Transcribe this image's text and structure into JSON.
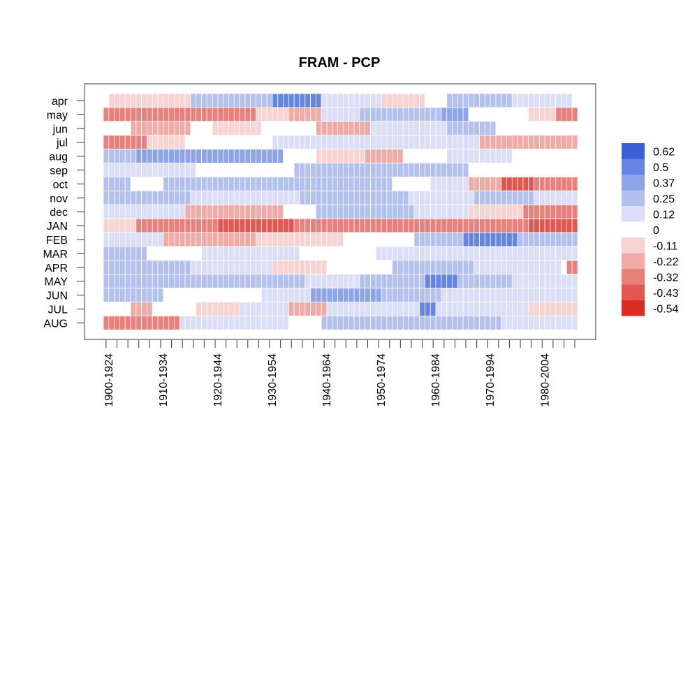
{
  "chart_data": {
    "type": "heatmap",
    "title": "FRAM - PCP",
    "rows": [
      "apr",
      "may",
      "jun",
      "jul",
      "aug",
      "sep",
      "oct",
      "nov",
      "dec",
      "JAN",
      "FEB",
      "MAR",
      "APR",
      "MAY",
      "JUN",
      "JUL",
      "AUG"
    ],
    "first_window_start": 1900,
    "last_window_start": 1986,
    "window_length_years": 25,
    "x_tick_labels": [
      "1900-1924",
      "1910-1934",
      "1920-1944",
      "1930-1954",
      "1940-1964",
      "1950-1974",
      "1960-1984",
      "1970-1994",
      "1980-2004"
    ],
    "legend": {
      "labels": [
        "0.62",
        "0.5",
        "0.37",
        "0.25",
        "0.12",
        "0",
        "-0.11",
        "-0.22",
        "-0.32",
        "-0.43",
        "-0.54"
      ],
      "colors": [
        "#3a5fd9",
        "#6585e2",
        "#8ea4e8",
        "#b4c1ef",
        "#dadff7",
        "#ffffff",
        "#f7d3d1",
        "#f0aba7",
        "#e9807b",
        "#e2574f",
        "#db2c22"
      ],
      "position": "right"
    },
    "segments": [
      [
        [
          1900,
          1900,
          0
        ],
        [
          1901,
          1904,
          -0.1
        ],
        [
          1905,
          1915,
          -0.1
        ],
        [
          1916,
          1927,
          0.25
        ],
        [
          1928,
          1930,
          0.3
        ],
        [
          1931,
          1939,
          0.45
        ],
        [
          1940,
          1950,
          0.08
        ],
        [
          1951,
          1958,
          -0.06
        ],
        [
          1959,
          1962,
          0.05
        ],
        [
          1963,
          1974,
          0.3
        ],
        [
          1975,
          1985,
          0.12
        ],
        [
          1986,
          1986,
          0
        ]
      ],
      [
        [
          1900,
          1913,
          -0.35
        ],
        [
          1914,
          1927,
          -0.28
        ],
        [
          1928,
          1933,
          -0.1
        ],
        [
          1934,
          1939,
          -0.2
        ],
        [
          1940,
          1946,
          0.08
        ],
        [
          1947,
          1961,
          0.28
        ],
        [
          1962,
          1966,
          0.35
        ],
        [
          1967,
          1977,
          0.02
        ],
        [
          1978,
          1982,
          -0.12
        ],
        [
          1983,
          1986,
          -0.28
        ]
      ],
      [
        [
          1900,
          1904,
          0
        ],
        [
          1905,
          1915,
          -0.2
        ],
        [
          1916,
          1919,
          0
        ],
        [
          1920,
          1928,
          -0.12
        ],
        [
          1929,
          1938,
          0.05
        ],
        [
          1939,
          1948,
          -0.2
        ],
        [
          1949,
          1962,
          0.1
        ],
        [
          1963,
          1971,
          0.3
        ],
        [
          1972,
          1982,
          0.05
        ],
        [
          1983,
          1986,
          0
        ]
      ],
      [
        [
          1900,
          1907,
          -0.28
        ],
        [
          1908,
          1914,
          -0.15
        ],
        [
          1915,
          1930,
          0.05
        ],
        [
          1931,
          1946,
          0.08
        ],
        [
          1947,
          1960,
          0.12
        ],
        [
          1961,
          1968,
          0.08
        ],
        [
          1969,
          1986,
          -0.22
        ]
      ],
      [
        [
          1900,
          1905,
          0.2
        ],
        [
          1906,
          1915,
          0.4
        ],
        [
          1916,
          1932,
          0.35
        ],
        [
          1933,
          1938,
          0
        ],
        [
          1939,
          1947,
          -0.15
        ],
        [
          1948,
          1954,
          -0.18
        ],
        [
          1955,
          1962,
          0.05
        ],
        [
          1963,
          1974,
          0.12
        ],
        [
          1975,
          1986,
          0.05
        ]
      ],
      [
        [
          1900,
          1916,
          0.15
        ],
        [
          1917,
          1925,
          0.05
        ],
        [
          1926,
          1934,
          0
        ],
        [
          1935,
          1955,
          0.25
        ],
        [
          1956,
          1966,
          0.25
        ],
        [
          1967,
          1986,
          0.05
        ]
      ],
      [
        [
          1900,
          1904,
          0.2
        ],
        [
          1905,
          1910,
          0.05
        ],
        [
          1911,
          1926,
          0.25
        ],
        [
          1927,
          1952,
          0.25
        ],
        [
          1953,
          1959,
          0.05
        ],
        [
          1960,
          1966,
          0.12
        ],
        [
          1967,
          1972,
          -0.25
        ],
        [
          1973,
          1978,
          -0.45
        ],
        [
          1979,
          1986,
          -0.3
        ]
      ],
      [
        [
          1900,
          1915,
          0.25
        ],
        [
          1916,
          1935,
          0.15
        ],
        [
          1936,
          1955,
          0.2
        ],
        [
          1956,
          1967,
          0.15
        ],
        [
          1968,
          1978,
          0.2
        ],
        [
          1979,
          1986,
          0.12
        ]
      ],
      [
        [
          1900,
          1906,
          0.12
        ],
        [
          1907,
          1914,
          0.12
        ],
        [
          1915,
          1932,
          -0.2
        ],
        [
          1933,
          1938,
          0.05
        ],
        [
          1939,
          1956,
          0.28
        ],
        [
          1957,
          1966,
          0.08
        ],
        [
          1967,
          1976,
          -0.15
        ],
        [
          1977,
          1986,
          -0.35
        ]
      ],
      [
        [
          1900,
          1905,
          -0.12
        ],
        [
          1906,
          1920,
          -0.35
        ],
        [
          1921,
          1934,
          -0.38
        ],
        [
          1935,
          1950,
          -0.28
        ],
        [
          1951,
          1962,
          -0.28
        ],
        [
          1963,
          1970,
          -0.35
        ],
        [
          1971,
          1977,
          -0.3
        ],
        [
          1978,
          1986,
          -0.4
        ]
      ],
      [
        [
          1900,
          1910,
          0.1
        ],
        [
          1911,
          1927,
          -0.25
        ],
        [
          1928,
          1943,
          -0.12
        ],
        [
          1944,
          1956,
          0.05
        ],
        [
          1957,
          1965,
          0.2
        ],
        [
          1966,
          1975,
          0.55
        ],
        [
          1976,
          1986,
          0.28
        ]
      ],
      [
        [
          1900,
          1907,
          0.2
        ],
        [
          1908,
          1917,
          0.05
        ],
        [
          1918,
          1935,
          0.1
        ],
        [
          1936,
          1949,
          0.05
        ],
        [
          1950,
          1970,
          0.15
        ],
        [
          1971,
          1986,
          0.1
        ]
      ],
      [
        [
          1900,
          1915,
          0.3
        ],
        [
          1916,
          1930,
          0.15
        ],
        [
          1931,
          1940,
          -0.12
        ],
        [
          1941,
          1952,
          0.05
        ],
        [
          1953,
          1967,
          0.25
        ],
        [
          1968,
          1983,
          0.15
        ],
        [
          1984,
          1984,
          0
        ],
        [
          1985,
          1986,
          -0.35
        ]
      ],
      [
        [
          1900,
          1915,
          0.28
        ],
        [
          1916,
          1936,
          0.25
        ],
        [
          1937,
          1946,
          0.12
        ],
        [
          1947,
          1958,
          0.28
        ],
        [
          1959,
          1964,
          0.45
        ],
        [
          1965,
          1974,
          0.25
        ],
        [
          1975,
          1986,
          0.12
        ]
      ],
      [
        [
          1900,
          1910,
          0.2
        ],
        [
          1911,
          1928,
          0.05
        ],
        [
          1929,
          1937,
          0.1
        ],
        [
          1938,
          1950,
          0.35
        ],
        [
          1951,
          1961,
          0.2
        ],
        [
          1962,
          1975,
          0.15
        ],
        [
          1976,
          1986,
          0.08
        ]
      ],
      [
        [
          1900,
          1904,
          0.05
        ],
        [
          1905,
          1908,
          -0.2
        ],
        [
          1909,
          1916,
          0.05
        ],
        [
          1917,
          1924,
          -0.12
        ],
        [
          1925,
          1933,
          0.12
        ],
        [
          1934,
          1940,
          -0.22
        ],
        [
          1941,
          1957,
          0.08
        ],
        [
          1958,
          1960,
          0.55
        ],
        [
          1961,
          1977,
          0.15
        ],
        [
          1978,
          1986,
          -0.1
        ]
      ],
      [
        [
          1900,
          1913,
          -0.3
        ],
        [
          1914,
          1933,
          0.15
        ],
        [
          1934,
          1939,
          0.05
        ],
        [
          1940,
          1955,
          0.28
        ],
        [
          1956,
          1972,
          0.2
        ],
        [
          1973,
          1986,
          0.15
        ]
      ]
    ]
  }
}
